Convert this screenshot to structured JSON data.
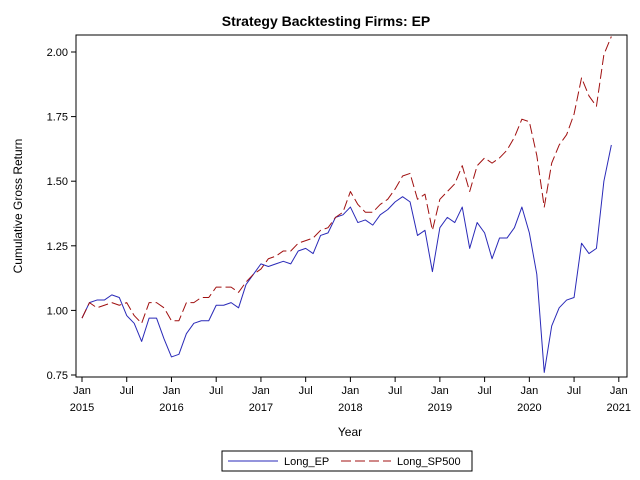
{
  "chart_data": {
    "type": "line",
    "title": "Strategy Backtesting  Firms: EP",
    "xlabel": "Year",
    "ylabel": "Cumulative Gross Return",
    "ylim": [
      0.75,
      2.0
    ],
    "yticks": [
      "0.75",
      "1.00",
      "1.25",
      "1.50",
      "1.75",
      "2.00"
    ],
    "xticks": [
      {
        "month": "Jan",
        "year": "2015",
        "t": 0
      },
      {
        "month": "Jul",
        "year": "",
        "t": 6
      },
      {
        "month": "Jan",
        "year": "2016",
        "t": 12
      },
      {
        "month": "Jul",
        "year": "",
        "t": 18
      },
      {
        "month": "Jan",
        "year": "2017",
        "t": 24
      },
      {
        "month": "Jul",
        "year": "",
        "t": 30
      },
      {
        "month": "Jan",
        "year": "2018",
        "t": 36
      },
      {
        "month": "Jul",
        "year": "",
        "t": 42
      },
      {
        "month": "Jan",
        "year": "2019",
        "t": 48
      },
      {
        "month": "Jul",
        "year": "",
        "t": 54
      },
      {
        "month": "Jan",
        "year": "2020",
        "t": 60
      },
      {
        "month": "Jul",
        "year": "",
        "t": 66
      },
      {
        "month": "Jan",
        "year": "2021",
        "t": 72
      }
    ],
    "grid": false,
    "legend_position": "bottom",
    "x_start": "2015-01",
    "series": [
      {
        "name": "Long_EP",
        "color": "#2a2ab8",
        "dash": "solid",
        "values": [
          0.97,
          1.03,
          1.04,
          1.04,
          1.06,
          1.05,
          0.98,
          0.95,
          0.88,
          0.97,
          0.97,
          0.89,
          0.82,
          0.83,
          0.91,
          0.95,
          0.96,
          0.96,
          1.02,
          1.02,
          1.03,
          1.01,
          1.1,
          1.14,
          1.18,
          1.17,
          1.18,
          1.19,
          1.18,
          1.23,
          1.24,
          1.22,
          1.29,
          1.3,
          1.36,
          1.37,
          1.4,
          1.34,
          1.35,
          1.33,
          1.37,
          1.39,
          1.42,
          1.44,
          1.42,
          1.29,
          1.31,
          1.15,
          1.32,
          1.36,
          1.34,
          1.4,
          1.24,
          1.34,
          1.3,
          1.2,
          1.28,
          1.28,
          1.32,
          1.4,
          1.3,
          1.14,
          0.76,
          0.94,
          1.01,
          1.04,
          1.05,
          1.26,
          1.22,
          1.24,
          1.5,
          1.64
        ]
      },
      {
        "name": "Long_SP500",
        "color": "#a01010",
        "dash": "dashed",
        "values": [
          0.97,
          1.03,
          1.01,
          1.02,
          1.03,
          1.02,
          1.03,
          0.98,
          0.95,
          1.03,
          1.03,
          1.01,
          0.96,
          0.96,
          1.03,
          1.03,
          1.05,
          1.05,
          1.09,
          1.09,
          1.09,
          1.07,
          1.11,
          1.14,
          1.16,
          1.2,
          1.21,
          1.23,
          1.23,
          1.26,
          1.27,
          1.28,
          1.31,
          1.32,
          1.36,
          1.38,
          1.46,
          1.41,
          1.38,
          1.38,
          1.41,
          1.43,
          1.47,
          1.52,
          1.53,
          1.43,
          1.45,
          1.31,
          1.43,
          1.46,
          1.49,
          1.56,
          1.46,
          1.56,
          1.59,
          1.57,
          1.59,
          1.62,
          1.67,
          1.74,
          1.73,
          1.6,
          1.4,
          1.57,
          1.64,
          1.68,
          1.76,
          1.9,
          1.83,
          1.79,
          1.99,
          2.06
        ]
      }
    ]
  }
}
